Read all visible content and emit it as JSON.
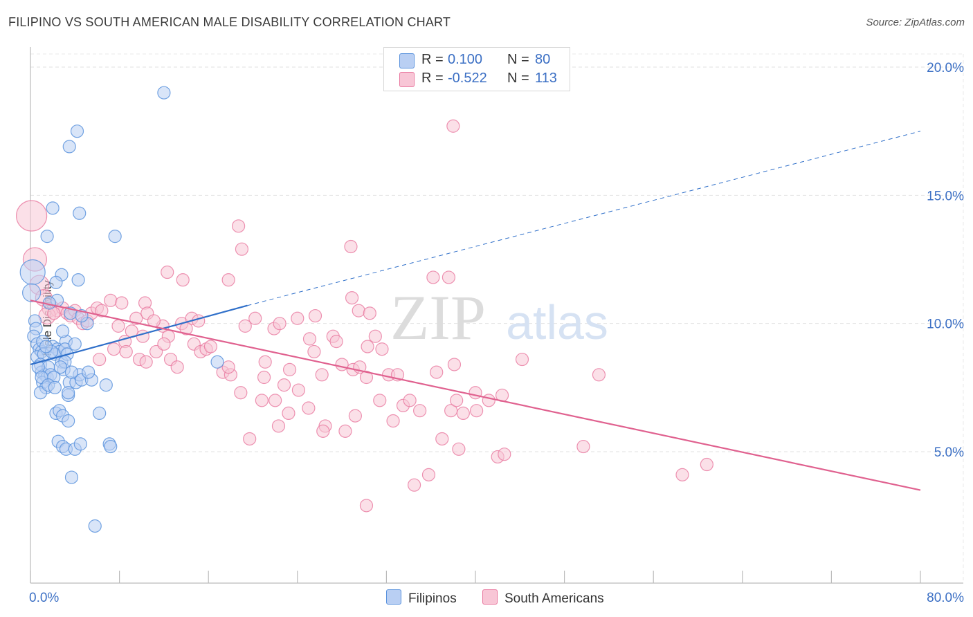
{
  "title": "FILIPINO VS SOUTH AMERICAN MALE DISABILITY CORRELATION CHART",
  "source": "Source: ZipAtlas.com",
  "watermark": {
    "zip": "ZIP",
    "atlas": "atlas"
  },
  "colors": {
    "blue": "#5b93dd",
    "blue_fill": "#b9cff3",
    "blue_line": "#2f6fc9",
    "pink": "#e9789f",
    "pink_fill": "#f8c6d6",
    "pink_line": "#e0618f",
    "axis_text": "#3b6fc4"
  },
  "legend_top": [
    {
      "r_label": "R =",
      "r_value": "0.100",
      "n_label": "N =",
      "n_value": "80"
    },
    {
      "r_label": "R =",
      "r_value": "-0.522",
      "n_label": "N =",
      "n_value": "113"
    }
  ],
  "chart_data": {
    "type": "scatter",
    "title": "FILIPINO VS SOUTH AMERICAN MALE DISABILITY CORRELATION CHART",
    "xlabel": "",
    "ylabel": "Male Disability",
    "xlim": [
      0,
      80
    ],
    "ylim": [
      0,
      20.8
    ],
    "x_tick_labels": [
      "0.0%",
      "80.0%"
    ],
    "y_ticks": [
      5,
      10,
      15,
      20
    ],
    "y_tick_labels": [
      "5.0%",
      "10.0%",
      "15.0%",
      "20.0%"
    ],
    "grid": true,
    "legend": "bottom-center",
    "series": [
      {
        "name": "Filipinos",
        "color": "#5b93dd",
        "R": 0.1,
        "N": 80,
        "trend": {
          "x0": 0,
          "y0": 8.4,
          "x1": 19.5,
          "y1": 10.7,
          "dashed_to_x": 80,
          "dashed_to_y": 17.5
        },
        "points": [
          [
            0.2,
            12.0
          ],
          [
            0.1,
            11.2
          ],
          [
            0.4,
            10.1
          ],
          [
            0.5,
            9.8
          ],
          [
            0.3,
            9.5
          ],
          [
            0.6,
            9.2
          ],
          [
            0.8,
            9.0
          ],
          [
            1.0,
            8.9
          ],
          [
            0.6,
            8.7
          ],
          [
            1.2,
            8.8
          ],
          [
            0.9,
            8.4
          ],
          [
            1.0,
            8.1
          ],
          [
            1.3,
            8.0
          ],
          [
            1.5,
            7.9
          ],
          [
            1.1,
            7.7
          ],
          [
            1.4,
            7.5
          ],
          [
            0.9,
            7.3
          ],
          [
            1.6,
            8.3
          ],
          [
            1.8,
            8.0
          ],
          [
            2.1,
            7.9
          ],
          [
            2.0,
            9.1
          ],
          [
            2.4,
            9.0
          ],
          [
            2.6,
            8.9
          ],
          [
            2.2,
            8.8
          ],
          [
            2.8,
            8.5
          ],
          [
            3.0,
            8.2
          ],
          [
            3.2,
            9.3
          ],
          [
            3.1,
            9.0
          ],
          [
            2.4,
            10.9
          ],
          [
            3.3,
            8.8
          ],
          [
            3.5,
            7.7
          ],
          [
            3.4,
            7.2
          ],
          [
            4.1,
            7.7
          ],
          [
            4.4,
            8.0
          ],
          [
            4.6,
            7.8
          ],
          [
            2.3,
            6.5
          ],
          [
            2.6,
            6.6
          ],
          [
            2.9,
            6.4
          ],
          [
            3.4,
            6.2
          ],
          [
            6.2,
            6.5
          ],
          [
            2.5,
            5.4
          ],
          [
            2.9,
            5.2
          ],
          [
            3.2,
            5.1
          ],
          [
            4.0,
            5.1
          ],
          [
            4.5,
            5.3
          ],
          [
            7.1,
            5.3
          ],
          [
            7.2,
            5.2
          ],
          [
            3.7,
            4.0
          ],
          [
            5.8,
            2.1
          ],
          [
            5.5,
            7.8
          ],
          [
            6.8,
            7.6
          ],
          [
            5.2,
            8.1
          ],
          [
            2.0,
            14.5
          ],
          [
            4.4,
            14.3
          ],
          [
            1.5,
            13.4
          ],
          [
            4.2,
            17.5
          ],
          [
            3.5,
            16.9
          ],
          [
            12.0,
            19.0
          ],
          [
            7.6,
            13.4
          ],
          [
            2.8,
            11.9
          ],
          [
            2.3,
            11.6
          ],
          [
            4.3,
            11.7
          ],
          [
            1.7,
            10.8
          ],
          [
            3.6,
            10.4
          ],
          [
            5.1,
            10.0
          ],
          [
            4.6,
            10.3
          ],
          [
            2.9,
            9.7
          ],
          [
            3.1,
            8.5
          ],
          [
            1.1,
            9.3
          ],
          [
            1.9,
            8.9
          ],
          [
            1.4,
            9.1
          ],
          [
            2.7,
            8.3
          ],
          [
            3.7,
            8.1
          ],
          [
            0.7,
            8.3
          ],
          [
            1.0,
            7.9
          ],
          [
            1.6,
            7.6
          ],
          [
            2.2,
            7.5
          ],
          [
            3.4,
            7.3
          ],
          [
            16.8,
            8.5
          ],
          [
            4.0,
            9.2
          ]
        ]
      },
      {
        "name": "South Americans",
        "color": "#e9789f",
        "R": -0.522,
        "N": 113,
        "trend": {
          "x0": 0,
          "y0": 10.9,
          "x1": 80,
          "y1": 3.5
        },
        "points": [
          [
            0.1,
            14.2
          ],
          [
            0.4,
            12.5
          ],
          [
            0.8,
            11.5
          ],
          [
            1.2,
            11.0
          ],
          [
            1.8,
            10.6
          ],
          [
            2.4,
            10.5
          ],
          [
            2.9,
            10.6
          ],
          [
            3.3,
            10.4
          ],
          [
            3.6,
            10.3
          ],
          [
            4.0,
            10.5
          ],
          [
            4.3,
            10.2
          ],
          [
            4.7,
            10.0
          ],
          [
            5.1,
            10.1
          ],
          [
            5.5,
            10.4
          ],
          [
            6.0,
            10.6
          ],
          [
            6.4,
            10.5
          ],
          [
            1.5,
            10.3
          ],
          [
            2.1,
            10.4
          ],
          [
            7.2,
            10.9
          ],
          [
            8.2,
            10.8
          ],
          [
            10.3,
            10.8
          ],
          [
            7.9,
            9.9
          ],
          [
            9.1,
            9.7
          ],
          [
            10.5,
            10.4
          ],
          [
            11.9,
            9.9
          ],
          [
            13.6,
            10.0
          ],
          [
            14.5,
            10.2
          ],
          [
            15.1,
            10.1
          ],
          [
            12.4,
            9.5
          ],
          [
            8.5,
            9.3
          ],
          [
            10.1,
            9.5
          ],
          [
            11.3,
            8.9
          ],
          [
            12.0,
            9.2
          ],
          [
            7.5,
            9.0
          ],
          [
            9.8,
            8.6
          ],
          [
            6.2,
            8.6
          ],
          [
            8.6,
            8.9
          ],
          [
            10.4,
            8.5
          ],
          [
            12.6,
            8.6
          ],
          [
            13.2,
            8.3
          ],
          [
            14.7,
            9.2
          ],
          [
            15.3,
            8.9
          ],
          [
            15.8,
            9.0
          ],
          [
            16.2,
            9.1
          ],
          [
            17.3,
            8.1
          ],
          [
            18.0,
            8.0
          ],
          [
            19.3,
            9.9
          ],
          [
            20.2,
            10.2
          ],
          [
            21.9,
            9.8
          ],
          [
            22.4,
            10.0
          ],
          [
            24.0,
            10.2
          ],
          [
            25.1,
            9.4
          ],
          [
            27.2,
            9.5
          ],
          [
            27.5,
            9.3
          ],
          [
            28.0,
            8.4
          ],
          [
            29.0,
            8.2
          ],
          [
            29.6,
            8.3
          ],
          [
            31.0,
            9.5
          ],
          [
            31.6,
            9.0
          ],
          [
            32.2,
            8.0
          ],
          [
            33.0,
            8.0
          ],
          [
            36.5,
            8.1
          ],
          [
            38.1,
            8.4
          ],
          [
            40.0,
            7.3
          ],
          [
            41.2,
            7.0
          ],
          [
            42.4,
            7.2
          ],
          [
            44.2,
            8.6
          ],
          [
            28.8,
            13.0
          ],
          [
            25.6,
            10.3
          ],
          [
            29.5,
            10.5
          ],
          [
            25.5,
            8.9
          ],
          [
            23.3,
            8.2
          ],
          [
            21.0,
            7.9
          ],
          [
            22.8,
            7.6
          ],
          [
            24.1,
            7.4
          ],
          [
            26.2,
            8.0
          ],
          [
            20.8,
            7.0
          ],
          [
            22.0,
            7.0
          ],
          [
            18.9,
            7.3
          ],
          [
            17.8,
            8.3
          ],
          [
            21.1,
            8.5
          ],
          [
            23.2,
            6.5
          ],
          [
            25.0,
            6.7
          ],
          [
            26.5,
            6.0
          ],
          [
            28.3,
            5.8
          ],
          [
            29.2,
            6.4
          ],
          [
            31.4,
            7.0
          ],
          [
            32.6,
            6.2
          ],
          [
            33.5,
            6.8
          ],
          [
            35.0,
            6.6
          ],
          [
            37.0,
            5.5
          ],
          [
            38.5,
            5.1
          ],
          [
            40.1,
            6.6
          ],
          [
            42.0,
            4.8
          ],
          [
            42.6,
            4.9
          ],
          [
            36.2,
            11.8
          ],
          [
            28.9,
            11.0
          ],
          [
            30.5,
            10.4
          ],
          [
            19.0,
            12.9
          ],
          [
            18.7,
            13.8
          ],
          [
            17.8,
            11.7
          ],
          [
            12.3,
            12.0
          ],
          [
            13.7,
            11.7
          ],
          [
            14.0,
            9.8
          ],
          [
            11.1,
            10.1
          ],
          [
            9.5,
            10.2
          ],
          [
            30.3,
            9.1
          ],
          [
            19.7,
            5.5
          ],
          [
            22.3,
            6.0
          ],
          [
            30.2,
            7.9
          ],
          [
            34.1,
            7.0
          ],
          [
            35.8,
            4.1
          ],
          [
            60.8,
            4.5
          ]
        ],
        "extra_points": [
          [
            38.9,
            6.5
          ],
          [
            30.2,
            2.9
          ],
          [
            49.7,
            5.2
          ],
          [
            51.1,
            8.0
          ],
          [
            58.6,
            4.1
          ],
          [
            37.8,
            6.6
          ],
          [
            38.3,
            7.0
          ],
          [
            26.3,
            5.8
          ],
          [
            34.5,
            3.7
          ],
          [
            37.6,
            11.8
          ],
          [
            38.0,
            17.7
          ]
        ]
      }
    ]
  }
}
